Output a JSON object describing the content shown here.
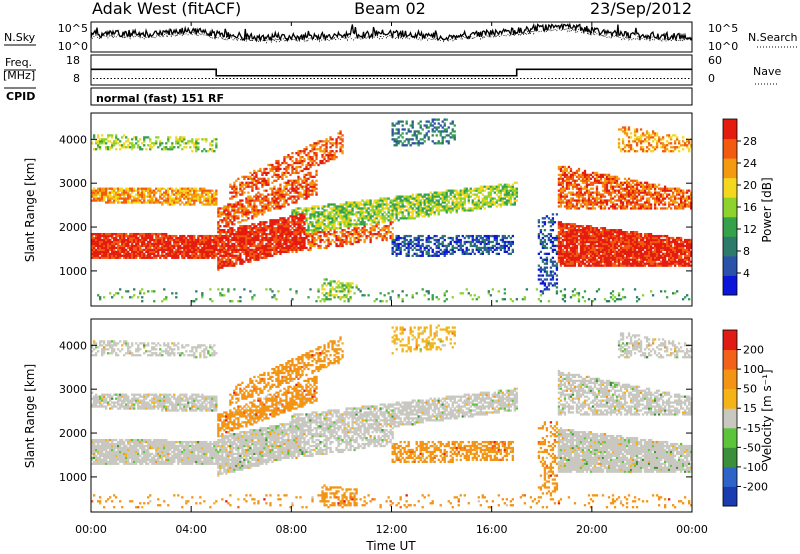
{
  "header": {
    "station": "Adak West (fitACF)",
    "beam": "Beam 02",
    "date": "23/Sep/2012"
  },
  "chart_data": [
    {
      "type": "line",
      "panel": "noise",
      "left_label": "N.Sky",
      "right_label": "N.Search",
      "y_ticks_left": [
        "10^5",
        "10^0"
      ],
      "y_ticks_right": [
        "10^5",
        "10^0"
      ],
      "series": [
        {
          "values_sky": [
            3.0,
            3.2,
            3.1,
            3.4,
            3.8,
            3.0,
            2.6,
            2.4,
            2.5,
            2.6,
            2.8,
            3.0,
            3.2,
            3.0,
            2.6,
            2.9,
            3.3,
            3.6,
            4.4,
            4.6,
            3.8,
            3.0,
            2.8,
            2.7,
            2.6
          ]
        }
      ],
      "x": [
        0,
        1,
        2,
        3,
        4,
        5,
        6,
        7,
        8,
        9,
        10,
        11,
        12,
        13,
        14,
        15,
        16,
        17,
        18,
        19,
        20,
        21,
        22,
        23,
        24
      ]
    },
    {
      "type": "line",
      "panel": "frequency",
      "left_label": "Freq.",
      "left_unit": "[MHz]",
      "right_label": "Nave",
      "y_ticks_left": [
        "18",
        "8"
      ],
      "y_ticks_right": [
        "60",
        "0"
      ],
      "freq_steps": [
        {
          "start": 0.0,
          "end": 5.0,
          "value": 13.3
        },
        {
          "start": 5.0,
          "end": 17.0,
          "value": 10.6
        },
        {
          "start": 17.0,
          "end": 24.0,
          "value": 13.3
        }
      ],
      "nave_level": 11
    },
    {
      "type": "heatmap",
      "panel": "power",
      "cpid_label": "CPID",
      "cpid_text": "normal (fast) 151 RF",
      "ylabel": "Slant Range [km]",
      "ylim": [
        200,
        4600
      ],
      "yticks": [
        "1000",
        "2000",
        "3000",
        "4000"
      ],
      "colorbar_label": "Power [dB]",
      "colorbar_ticks": [
        "28",
        "24",
        "20",
        "16",
        "12",
        "8",
        "4"
      ],
      "colorbar_range": [
        0,
        32
      ],
      "colors": [
        "#0b16d8",
        "#2a52a8",
        "#2e7a6a",
        "#34a24a",
        "#8ed22e",
        "#f4d820",
        "#f49a10",
        "#f25a10",
        "#e41c10"
      ]
    },
    {
      "type": "heatmap",
      "panel": "velocity",
      "ylabel": "Slant Range [km]",
      "ylim": [
        200,
        4600
      ],
      "yticks": [
        "1000",
        "2000",
        "3000",
        "4000"
      ],
      "colorbar_label": "Velocity [m s⁻¹]",
      "colorbar_ticks": [
        "200",
        "100",
        "50",
        "15",
        "-15",
        "-50",
        "-100",
        "-200"
      ],
      "colors": [
        "#1b3bb0",
        "#2e64c8",
        "#3b8e3a",
        "#5cc43a",
        "#c8c8c0",
        "#f4b418",
        "#f49414",
        "#f2601a",
        "#e01a14"
      ],
      "xlabel": "Time UT",
      "xticks": [
        "00:00",
        "04:00",
        "08:00",
        "12:00",
        "16:00",
        "20:00",
        "00:00"
      ],
      "xlim": [
        0,
        24
      ]
    }
  ]
}
